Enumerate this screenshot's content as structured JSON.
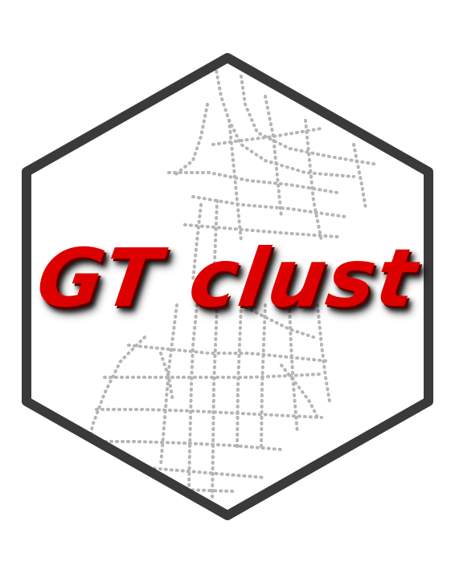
{
  "logo": {
    "title": "GT clust",
    "colors": {
      "border": "#3b393a",
      "fill": "#ffffff",
      "network": "#b5b5b5",
      "title": "#dd0000",
      "title_shadow": "#1a1a1a"
    },
    "background_graphic": "transit-network-map"
  }
}
